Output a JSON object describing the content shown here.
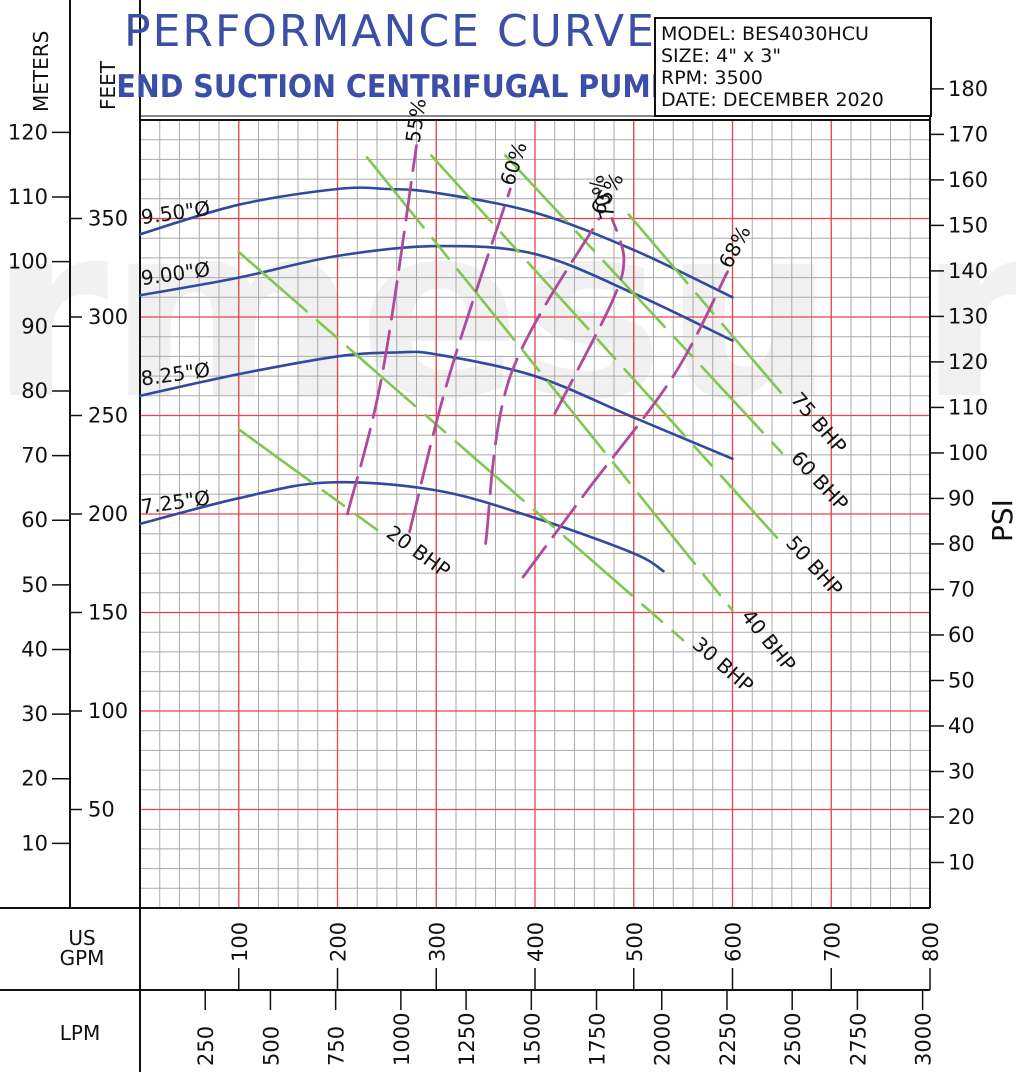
{
  "title": "PERFORMANCE CURVE",
  "subtitle": "END SUCTION CENTRIFUGAL PUMP",
  "info": {
    "model": "MODEL: BES4030HCU",
    "size": "SIZE: 4\" x 3\"",
    "rpm": "RPM: 3500",
    "date": "DATE: DECEMBER 2020"
  },
  "axis_labels": {
    "meters": "METERS",
    "feet": "FEET",
    "psi": "PSI",
    "gpm": "US\nGPM",
    "lpm": "LPM"
  },
  "colors": {
    "impeller": "#2f4a9e",
    "bhp": "#7ec850",
    "efficiency": "#b04a9b",
    "major_grid": "#e8454a",
    "minor_grid": "#aaaaaa"
  },
  "chart_data": {
    "type": "line",
    "title": "PERFORMANCE CURVE",
    "subtitle": "END SUCTION CENTRIFUGAL PUMP",
    "xlabel": "US GPM",
    "ylabel": "FEET",
    "xlim": [
      0,
      800
    ],
    "ylim": [
      0,
      400
    ],
    "grid": true,
    "secondary_axes": {
      "meters_ticks": [
        10,
        20,
        30,
        40,
        50,
        60,
        70,
        80,
        90,
        100,
        110,
        120
      ],
      "psi_ticks": [
        10,
        20,
        30,
        40,
        50,
        60,
        70,
        80,
        90,
        100,
        110,
        120,
        130,
        140,
        150,
        160,
        170,
        180
      ],
      "lpm_ticks": [
        250,
        500,
        750,
        1000,
        1250,
        1500,
        1750,
        2000,
        2250,
        2500,
        2750,
        3000
      ]
    },
    "x_ticks": [
      100,
      200,
      300,
      400,
      500,
      600,
      700,
      800
    ],
    "y_ticks": [
      50,
      100,
      150,
      200,
      250,
      300,
      350
    ],
    "series": [
      {
        "name": "9.50\"Ø",
        "group": "impeller",
        "x": [
          0,
          100,
          200,
          250,
          300,
          400,
          500,
          600
        ],
        "y": [
          342,
          357,
          365,
          365,
          363,
          353,
          334,
          310
        ]
      },
      {
        "name": "9.00\"Ø",
        "group": "impeller",
        "x": [
          0,
          100,
          200,
          300,
          400,
          500,
          600
        ],
        "y": [
          311,
          320,
          331,
          336,
          332,
          312,
          288
        ]
      },
      {
        "name": "8.25\"Ø",
        "group": "impeller",
        "x": [
          0,
          100,
          200,
          260,
          300,
          400,
          500,
          600
        ],
        "y": [
          260,
          271,
          280,
          282,
          281,
          270,
          249,
          228
        ]
      },
      {
        "name": "7.25\"Ø",
        "group": "impeller",
        "x": [
          0,
          100,
          190,
          300,
          400,
          500,
          530
        ],
        "y": [
          195,
          208,
          216,
          212,
          198,
          180,
          171
        ]
      },
      {
        "name": "20 BHP",
        "group": "bhp",
        "x": [
          100,
          240
        ],
        "y": [
          243,
          192
        ]
      },
      {
        "name": "30 BHP",
        "group": "bhp",
        "x": [
          100,
          550
        ],
        "y": [
          333,
          136
        ]
      },
      {
        "name": "40 BHP",
        "group": "bhp",
        "x": [
          230,
          600
        ],
        "y": [
          381,
          151
        ]
      },
      {
        "name": "50 BHP",
        "group": "bhp",
        "x": [
          295,
          645
        ],
        "y": [
          382,
          188
        ]
      },
      {
        "name": "60 BHP",
        "group": "bhp",
        "x": [
          370,
          650
        ],
        "y": [
          382,
          231
        ]
      },
      {
        "name": "75 BHP",
        "group": "bhp",
        "x": [
          495,
          650
        ],
        "y": [
          352,
          261
        ]
      },
      {
        "name": "55%",
        "group": "efficiency",
        "x": [
          210,
          245,
          280
        ],
        "y": [
          200,
          270,
          387
        ]
      },
      {
        "name": "60%",
        "group": "efficiency",
        "x": [
          273,
          313,
          375
        ],
        "y": [
          191,
          270,
          365
        ]
      },
      {
        "name": "65%",
        "group": "efficiency",
        "x": [
          350,
          375,
          465
        ],
        "y": [
          185,
          270,
          350
        ]
      },
      {
        "name": "70%",
        "group": "efficiency",
        "x": [
          420,
          440,
          480,
          490,
          478
        ],
        "y": [
          251,
          270,
          310,
          330,
          350
        ]
      },
      {
        "name": "68%",
        "group": "efficiency",
        "x": [
          388,
          450,
          540,
          595
        ],
        "y": [
          168,
          210,
          270,
          323
        ]
      }
    ]
  }
}
